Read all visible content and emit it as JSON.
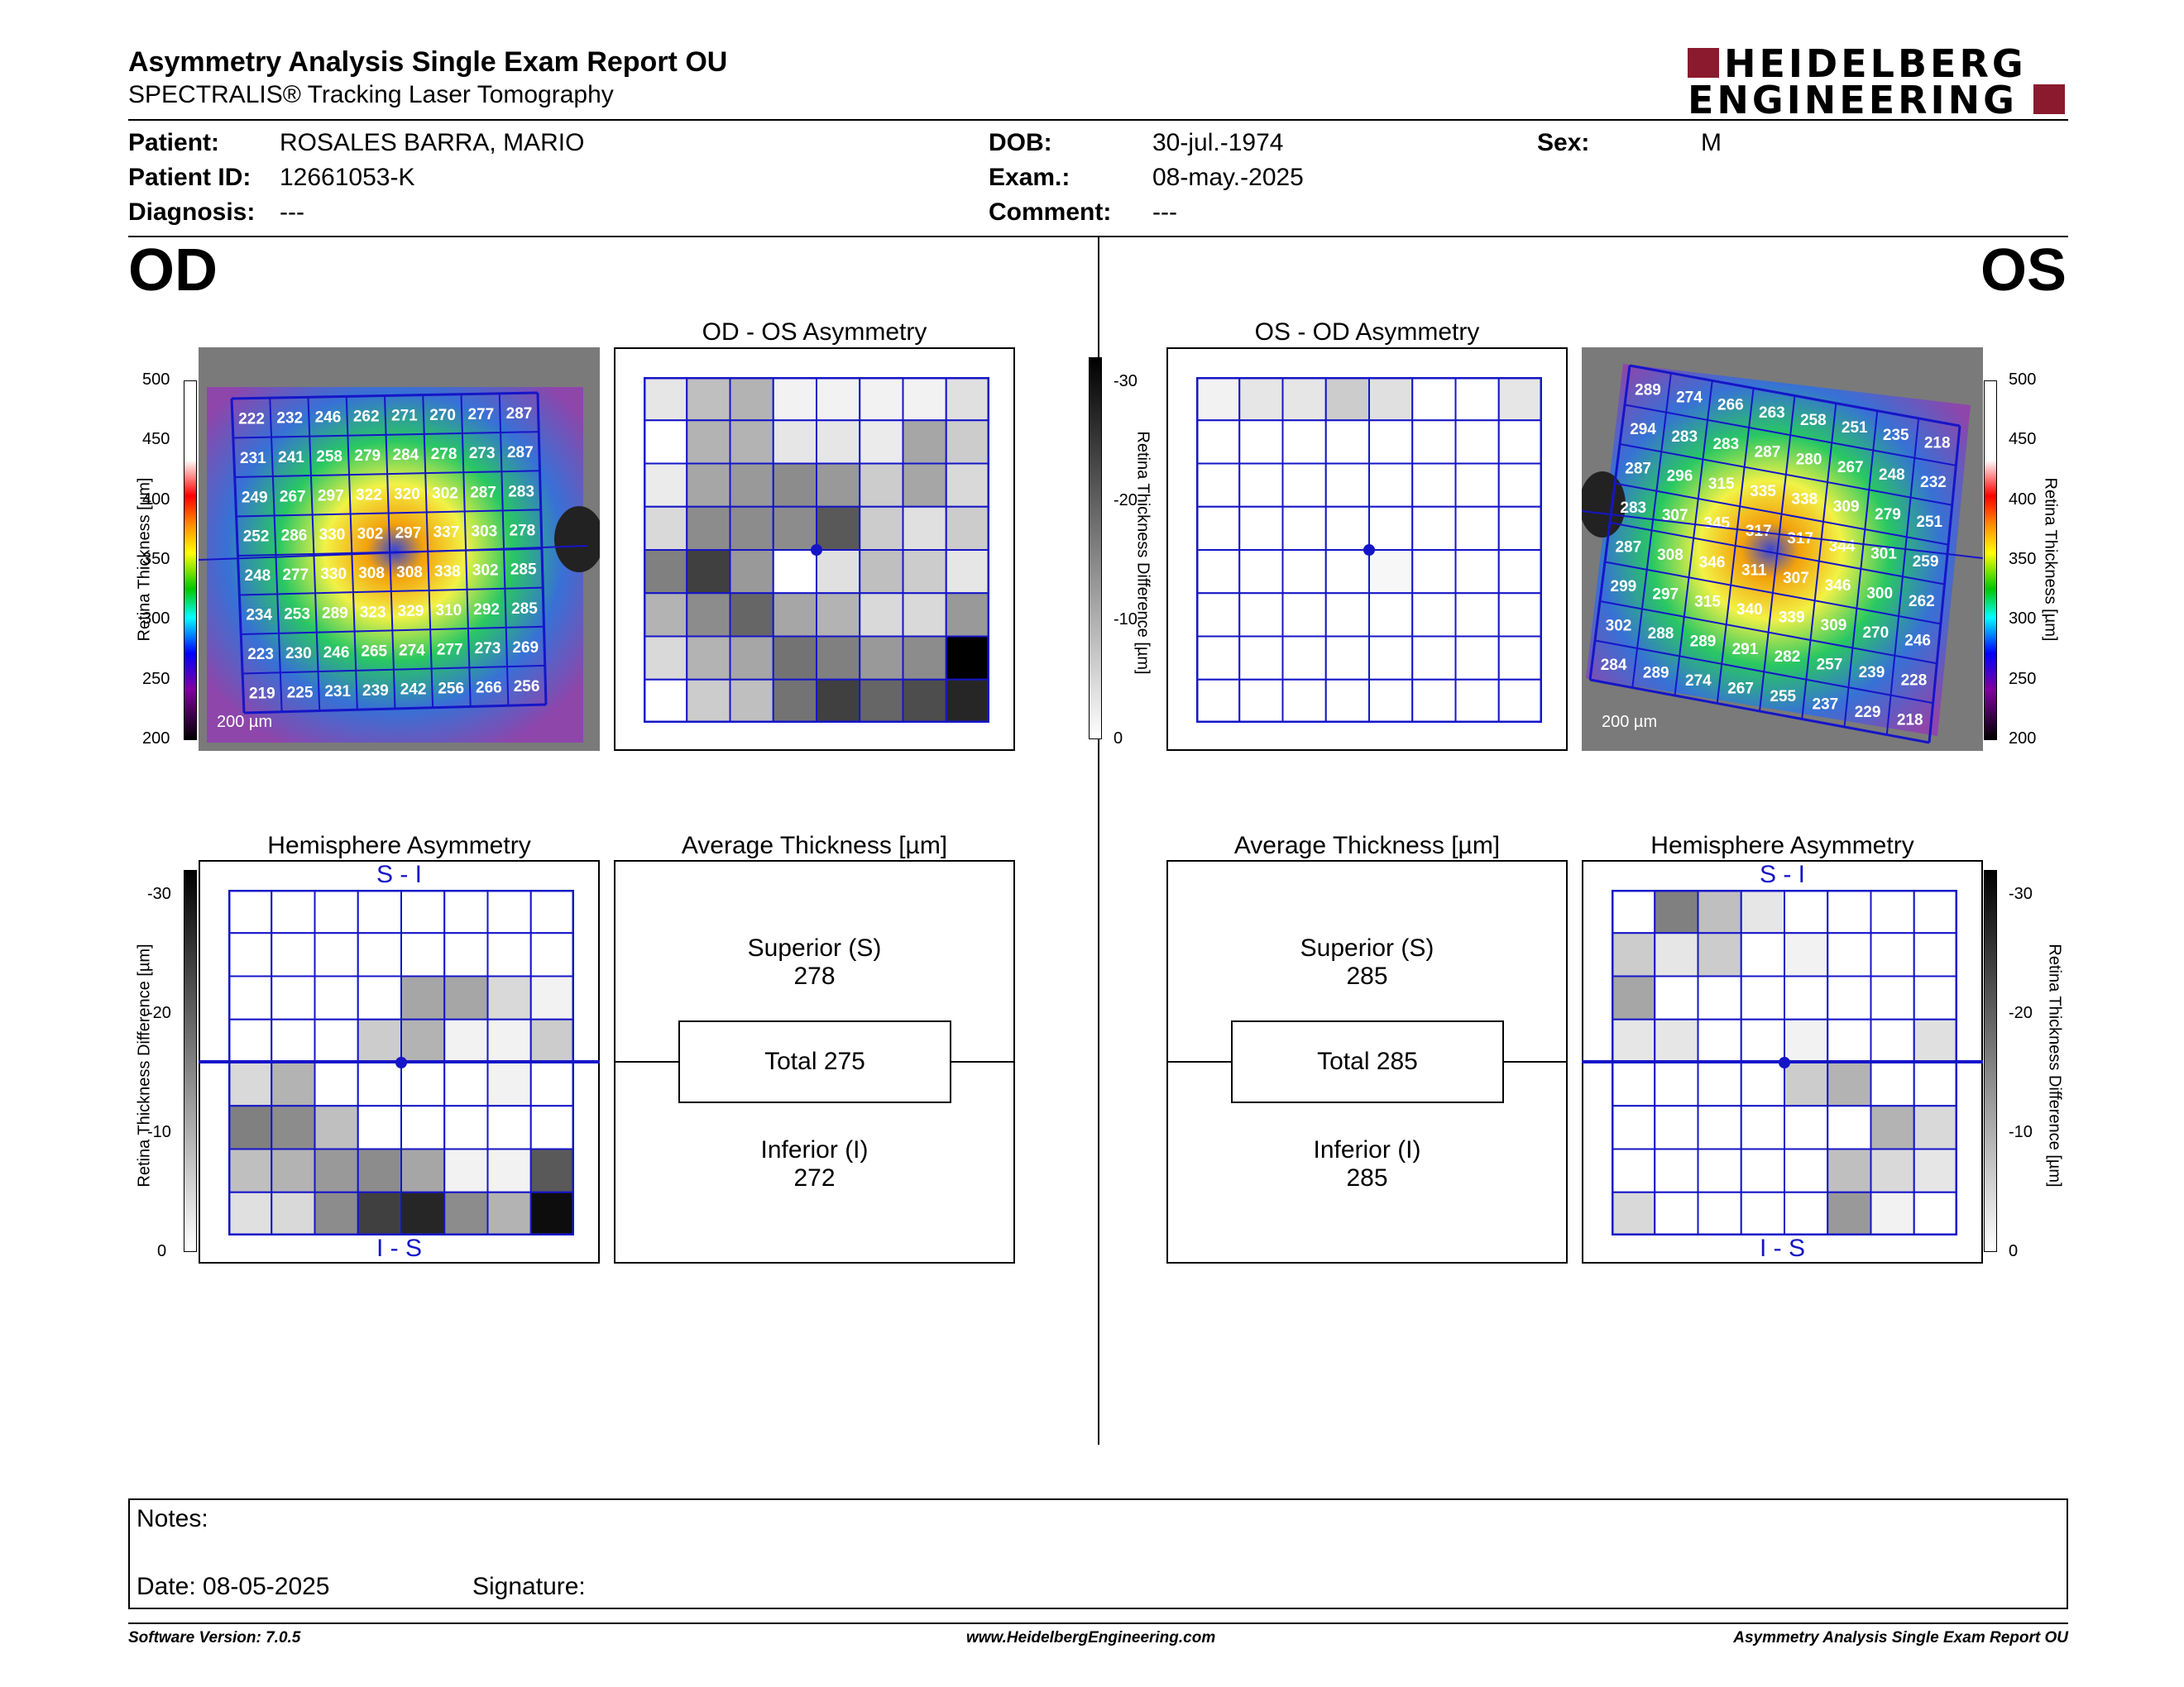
{
  "header": {
    "title": "Asymmetry Analysis Single Exam Report OU",
    "subtitle": "SPECTRALIS® Tracking Laser Tomography",
    "logo_line1": "HEIDELBERG",
    "logo_line2": "ENGINEERING"
  },
  "patient": {
    "patient_label": "Patient:",
    "patient_value": "ROSALES BARRA, MARIO",
    "id_label": "Patient ID:",
    "id_value": "12661053-K",
    "diag_label": "Diagnosis:",
    "diag_value": "---",
    "dob_label": "DOB:",
    "dob_value": "30-jul.-1974",
    "exam_label": "Exam.:",
    "exam_value": "08-may.-2025",
    "comment_label": "Comment:",
    "comment_value": "---",
    "sex_label": "Sex:",
    "sex_value": "M"
  },
  "od": {
    "label": "OD",
    "scale_bar": "200 µm",
    "thickness_axis_label": "Retina Thickness [µm]",
    "thickness_ticks": [
      "500",
      "450",
      "400",
      "350",
      "300",
      "250",
      "200"
    ],
    "thickness_grid": [
      [
        222,
        232,
        246,
        262,
        271,
        270,
        277,
        287
      ],
      [
        231,
        241,
        258,
        279,
        284,
        278,
        273,
        287
      ],
      [
        249,
        267,
        297,
        322,
        320,
        302,
        287,
        283
      ],
      [
        252,
        286,
        330,
        302,
        297,
        337,
        303,
        278
      ],
      [
        248,
        277,
        330,
        308,
        308,
        338,
        302,
        285
      ],
      [
        234,
        253,
        289,
        323,
        329,
        310,
        292,
        285
      ],
      [
        223,
        230,
        246,
        265,
        274,
        277,
        273,
        269
      ],
      [
        219,
        225,
        231,
        239,
        242,
        256,
        266,
        256
      ]
    ],
    "asym_title": "OD - OS Asymmetry",
    "asym_grid": [
      [
        0.1,
        0.25,
        0.3,
        0.05,
        0.05,
        0.05,
        0.05,
        0.12
      ],
      [
        0.0,
        0.3,
        0.3,
        0.1,
        0.1,
        0.08,
        0.35,
        0.2
      ],
      [
        0.08,
        0.35,
        0.4,
        0.45,
        0.4,
        0.2,
        0.35,
        0.15
      ],
      [
        0.15,
        0.45,
        0.45,
        0.45,
        0.65,
        0.2,
        0.12,
        0.2
      ],
      [
        0.5,
        0.75,
        0.4,
        0.0,
        0.12,
        0.25,
        0.2,
        0.1
      ],
      [
        0.3,
        0.45,
        0.6,
        0.35,
        0.3,
        0.15,
        0.15,
        0.4
      ],
      [
        0.15,
        0.3,
        0.35,
        0.55,
        0.5,
        0.4,
        0.45,
        1.0
      ],
      [
        0.0,
        0.2,
        0.25,
        0.55,
        0.75,
        0.6,
        0.7,
        0.85
      ]
    ],
    "hemi_title": "Hemisphere Asymmetry",
    "hemi_top": "S - I",
    "hemi_bottom": "I - S",
    "hemi_grid": [
      [
        0,
        0,
        0,
        0,
        0,
        0,
        0,
        0
      ],
      [
        0,
        0,
        0,
        0,
        0,
        0,
        0,
        0
      ],
      [
        0,
        0,
        0,
        0,
        0.35,
        0.35,
        0.15,
        0.05
      ],
      [
        0,
        0,
        0,
        0.2,
        0.3,
        0.05,
        0.05,
        0.2
      ],
      [
        0.15,
        0.3,
        0,
        0,
        0,
        0,
        0.05,
        0
      ],
      [
        0.5,
        0.45,
        0.25,
        0,
        0,
        0,
        0,
        0
      ],
      [
        0.25,
        0.3,
        0.4,
        0.45,
        0.35,
        0.05,
        0.05,
        0.65
      ],
      [
        0.12,
        0.15,
        0.45,
        0.75,
        0.85,
        0.45,
        0.3,
        0.95
      ]
    ],
    "avg_title": "Average Thickness [µm]",
    "superior_label": "Superior (S)",
    "superior_value": "278",
    "total_label": "Total 275",
    "inferior_label": "Inferior (I)",
    "inferior_value": "272"
  },
  "os": {
    "label": "OS",
    "scale_bar": "200 µm",
    "thickness_axis_label": "Retina Thickness [µm]",
    "thickness_ticks": [
      "500",
      "450",
      "400",
      "350",
      "300",
      "250",
      "200"
    ],
    "thickness_grid": [
      [
        289,
        274,
        266,
        263,
        258,
        251,
        235,
        218
      ],
      [
        294,
        283,
        283,
        287,
        280,
        267,
        248,
        232
      ],
      [
        287,
        296,
        315,
        335,
        338,
        309,
        279,
        251
      ],
      [
        283,
        307,
        345,
        317,
        317,
        344,
        301,
        259
      ],
      [
        287,
        308,
        346,
        311,
        307,
        346,
        300,
        262
      ],
      [
        299,
        297,
        315,
        340,
        339,
        309,
        270,
        246
      ],
      [
        302,
        288,
        289,
        291,
        282,
        257,
        239,
        228
      ],
      [
        284,
        289,
        274,
        267,
        255,
        237,
        229,
        218
      ]
    ],
    "asym_title": "OS - OD Asymmetry",
    "asym_grid": [
      [
        0.05,
        0.1,
        0.1,
        0.2,
        0.12,
        0,
        0,
        0.1
      ],
      [
        0,
        0,
        0,
        0,
        0,
        0,
        0,
        0
      ],
      [
        0,
        0,
        0,
        0,
        0,
        0,
        0,
        0
      ],
      [
        0,
        0,
        0,
        0,
        0,
        0,
        0,
        0
      ],
      [
        0,
        0,
        0,
        0,
        0.03,
        0,
        0,
        0
      ],
      [
        0,
        0,
        0,
        0,
        0,
        0,
        0,
        0
      ],
      [
        0,
        0,
        0,
        0,
        0,
        0,
        0,
        0
      ],
      [
        0,
        0,
        0,
        0,
        0,
        0,
        0,
        0
      ]
    ],
    "hemi_title": "Hemisphere Asymmetry",
    "hemi_top": "S - I",
    "hemi_bottom": "I - S",
    "hemi_grid": [
      [
        0,
        0.5,
        0.25,
        0.1,
        0,
        0,
        0,
        0
      ],
      [
        0.2,
        0.1,
        0.2,
        0,
        0.05,
        0,
        0,
        0
      ],
      [
        0.35,
        0,
        0,
        0,
        0,
        0,
        0,
        0
      ],
      [
        0.1,
        0.1,
        0,
        0,
        0.05,
        0,
        0,
        0.12
      ],
      [
        0,
        0,
        0,
        0,
        0.2,
        0.3,
        0,
        0
      ],
      [
        0,
        0,
        0,
        0,
        0,
        0,
        0.3,
        0.15
      ],
      [
        0,
        0,
        0,
        0,
        0,
        0.25,
        0.15,
        0.1
      ],
      [
        0.15,
        0,
        0,
        0,
        0,
        0.4,
        0.05,
        0
      ]
    ],
    "avg_title": "Average Thickness [µm]",
    "superior_label": "Superior (S)",
    "superior_value": "285",
    "total_label": "Total 285",
    "inferior_label": "Inferior (I)",
    "inferior_value": "285"
  },
  "diff_scale": {
    "label": "Retina Thickness Difference [µm]",
    "ticks": [
      "-30",
      "-20",
      "-10",
      "0"
    ]
  },
  "notes": {
    "notes_label": "Notes:",
    "date_label": "Date: 08-05-2025",
    "signature_label": "Signature:"
  },
  "footer": {
    "software": "Software Version: 7.0.5",
    "website": "www.HeidelbergEngineering.com",
    "report": "Asymmetry Analysis Single Exam Report OU"
  },
  "colors": {
    "grid_blue": "#1515c8",
    "logo_red": "#8b1a2e"
  }
}
